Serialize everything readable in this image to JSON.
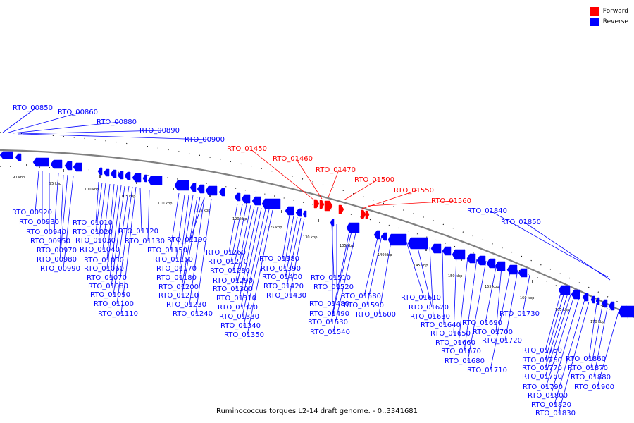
{
  "colors": {
    "forward": "#ff0000",
    "reverse": "#0000ff",
    "backbone": "#808080"
  },
  "legend": [
    {
      "label": "Forward",
      "color": "#ff0000"
    },
    {
      "label": "Reverse",
      "color": "#0000ff"
    }
  ],
  "caption": "Ruminococcus torques L2-14 draft genome. - 0..3341681",
  "ticks": [
    "90 kbp",
    "95 kbp",
    "100 kbp",
    "105 kbp",
    "110 kbp",
    "115 kbp",
    "120 kbp",
    "125 kbp",
    "130 kbp",
    "135 kbp",
    "140 kbp",
    "145 kbp",
    "150 kbp",
    "155 kbp",
    "160 kbp",
    "165 kbp",
    "170 kbp"
  ],
  "genes": [
    {
      "label": "RTO_00850",
      "strand": "reverse"
    },
    {
      "label": "RTO_00860",
      "strand": "reverse"
    },
    {
      "label": "RTO_00880",
      "strand": "reverse"
    },
    {
      "label": "RTO_00890",
      "strand": "reverse"
    },
    {
      "label": "RTO_00900",
      "strand": "reverse"
    },
    {
      "label": "RTO_01450",
      "strand": "forward"
    },
    {
      "label": "RTO_01460",
      "strand": "forward"
    },
    {
      "label": "RTO_01470",
      "strand": "forward"
    },
    {
      "label": "RTO_01500",
      "strand": "forward"
    },
    {
      "label": "RTO_01550",
      "strand": "forward"
    },
    {
      "label": "RTO_01560",
      "strand": "forward"
    },
    {
      "label": "RTO_01840",
      "strand": "reverse"
    },
    {
      "label": "RTO_01850",
      "strand": "reverse"
    },
    {
      "label": "RTO_00920",
      "strand": "reverse"
    },
    {
      "label": "RTO_00930",
      "strand": "reverse"
    },
    {
      "label": "RTO_00940",
      "strand": "reverse"
    },
    {
      "label": "RTO_00950",
      "strand": "reverse"
    },
    {
      "label": "RTO_00970",
      "strand": "reverse"
    },
    {
      "label": "RTO_00980",
      "strand": "reverse"
    },
    {
      "label": "RTO_00990",
      "strand": "reverse"
    },
    {
      "label": "RTO_01010",
      "strand": "reverse"
    },
    {
      "label": "RTO_01020",
      "strand": "reverse"
    },
    {
      "label": "RTO_01030",
      "strand": "reverse"
    },
    {
      "label": "RTO_01040",
      "strand": "reverse"
    },
    {
      "label": "RTO_01050",
      "strand": "reverse"
    },
    {
      "label": "RTO_01060",
      "strand": "reverse"
    },
    {
      "label": "RTO_01070",
      "strand": "reverse"
    },
    {
      "label": "RTO_01080",
      "strand": "reverse"
    },
    {
      "label": "RTO_01090",
      "strand": "reverse"
    },
    {
      "label": "RTO_01100",
      "strand": "reverse"
    },
    {
      "label": "RTO_01110",
      "strand": "reverse"
    },
    {
      "label": "RTO_01120",
      "strand": "reverse"
    },
    {
      "label": "RTO_01130",
      "strand": "reverse"
    },
    {
      "label": "RTO_01150",
      "strand": "reverse"
    },
    {
      "label": "RTO_01160",
      "strand": "reverse"
    },
    {
      "label": "RTO_01170",
      "strand": "reverse"
    },
    {
      "label": "RTO_01180",
      "strand": "reverse"
    },
    {
      "label": "RTO_01190",
      "strand": "reverse"
    },
    {
      "label": "RTO_01200",
      "strand": "reverse"
    },
    {
      "label": "RTO_01210",
      "strand": "reverse"
    },
    {
      "label": "RTO_01230",
      "strand": "reverse"
    },
    {
      "label": "RTO_01240",
      "strand": "reverse"
    },
    {
      "label": "RTO_01260",
      "strand": "reverse"
    },
    {
      "label": "RTO_01270",
      "strand": "reverse"
    },
    {
      "label": "RTO_01280",
      "strand": "reverse"
    },
    {
      "label": "RTO_01290",
      "strand": "reverse"
    },
    {
      "label": "RTO_01300",
      "strand": "reverse"
    },
    {
      "label": "RTO_01310",
      "strand": "reverse"
    },
    {
      "label": "RTO_01320",
      "strand": "reverse"
    },
    {
      "label": "RTO_01330",
      "strand": "reverse"
    },
    {
      "label": "RTO_01340",
      "strand": "reverse"
    },
    {
      "label": "RTO_01350",
      "strand": "reverse"
    },
    {
      "label": "RTO_01380",
      "strand": "reverse"
    },
    {
      "label": "RTO_01390",
      "strand": "reverse"
    },
    {
      "label": "RTO_01400",
      "strand": "reverse"
    },
    {
      "label": "RTO_01420",
      "strand": "reverse"
    },
    {
      "label": "RTO_01430",
      "strand": "reverse"
    },
    {
      "label": "RTO_01480",
      "strand": "reverse"
    },
    {
      "label": "RTO_01490",
      "strand": "reverse"
    },
    {
      "label": "RTO_01510",
      "strand": "reverse"
    },
    {
      "label": "RTO_01520",
      "strand": "reverse"
    },
    {
      "label": "RTO_01530",
      "strand": "reverse"
    },
    {
      "label": "RTO_01540",
      "strand": "reverse"
    },
    {
      "label": "RTO_01580",
      "strand": "reverse"
    },
    {
      "label": "RTO_01590",
      "strand": "reverse"
    },
    {
      "label": "RTO_01600",
      "strand": "reverse"
    },
    {
      "label": "RTO_01610",
      "strand": "reverse"
    },
    {
      "label": "RTO_01620",
      "strand": "reverse"
    },
    {
      "label": "RTO_01630",
      "strand": "reverse"
    },
    {
      "label": "RTO_01640",
      "strand": "reverse"
    },
    {
      "label": "RTO_01650",
      "strand": "reverse"
    },
    {
      "label": "RTO_01660",
      "strand": "reverse"
    },
    {
      "label": "RTO_01670",
      "strand": "reverse"
    },
    {
      "label": "RTO_01680",
      "strand": "reverse"
    },
    {
      "label": "RTO_01690",
      "strand": "reverse"
    },
    {
      "label": "RTO_01700",
      "strand": "reverse"
    },
    {
      "label": "RTO_01710",
      "strand": "reverse"
    },
    {
      "label": "RTO_01720",
      "strand": "reverse"
    },
    {
      "label": "RTO_01730",
      "strand": "reverse"
    },
    {
      "label": "RTO_01750",
      "strand": "reverse"
    },
    {
      "label": "RTO_01760",
      "strand": "reverse"
    },
    {
      "label": "RTO_01770",
      "strand": "reverse"
    },
    {
      "label": "RTO_01780",
      "strand": "reverse"
    },
    {
      "label": "RTO_01790",
      "strand": "reverse"
    },
    {
      "label": "RTO_01800",
      "strand": "reverse"
    },
    {
      "label": "RTO_01820",
      "strand": "reverse"
    },
    {
      "label": "RTO_01830",
      "strand": "reverse"
    },
    {
      "label": "RTO_01860",
      "strand": "reverse"
    },
    {
      "label": "RTO_01870",
      "strand": "reverse"
    },
    {
      "label": "RTO_01880",
      "strand": "reverse"
    },
    {
      "label": "RTO_01900",
      "strand": "reverse"
    }
  ]
}
